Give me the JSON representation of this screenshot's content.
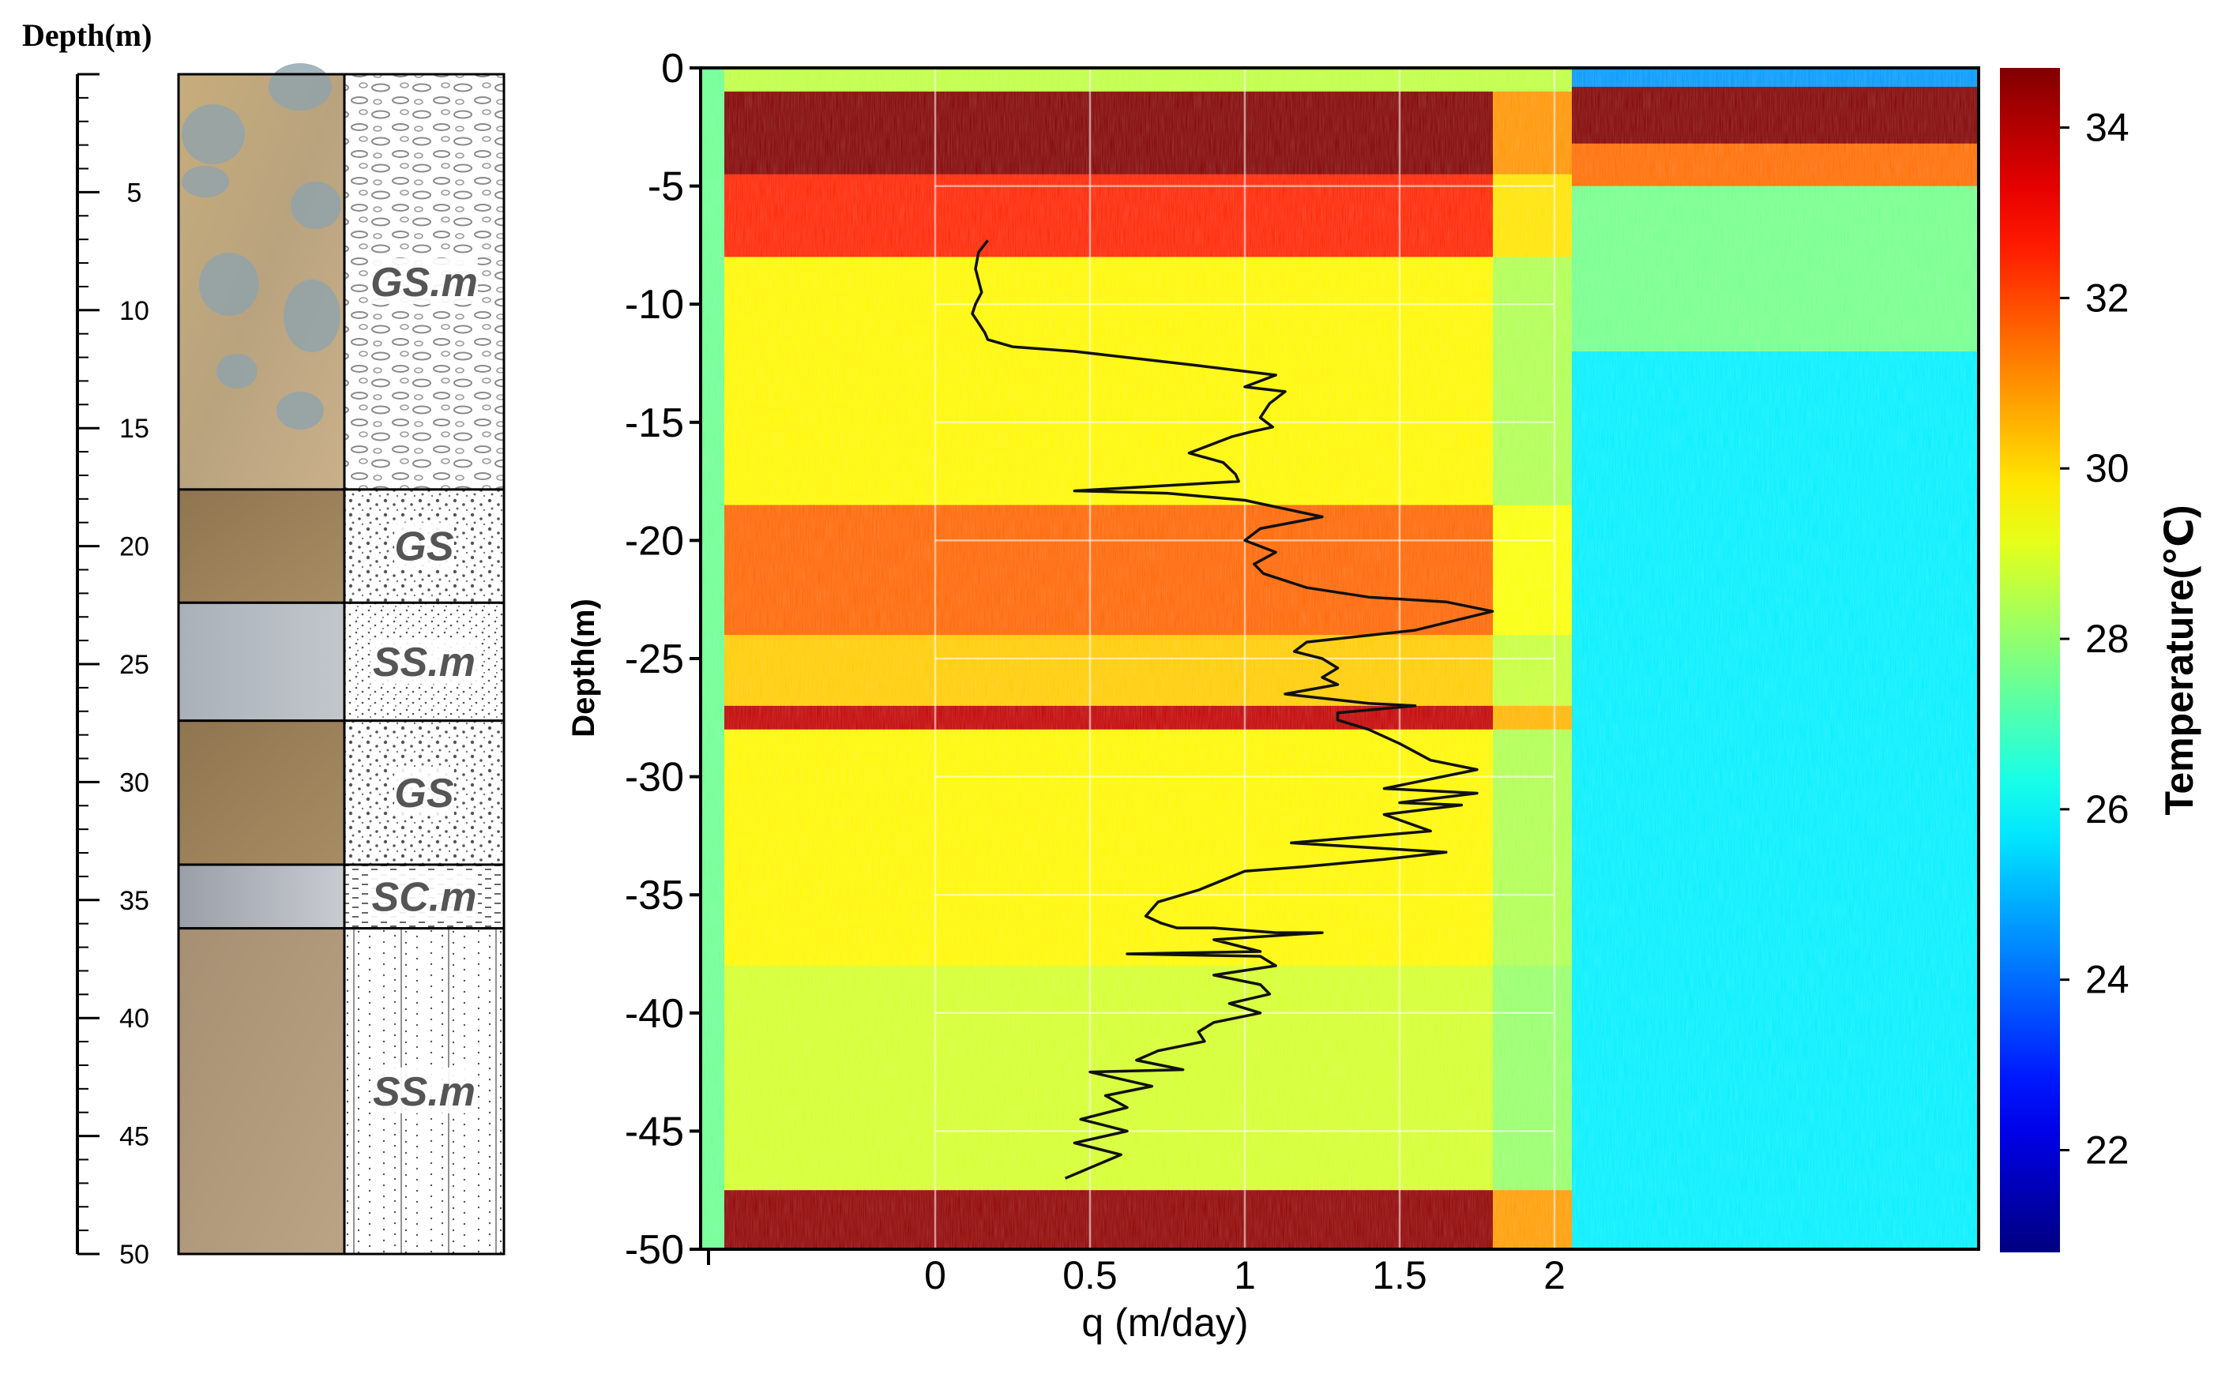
{
  "column": {
    "depth_label": "Depth(m)",
    "ticks": [
      5,
      10,
      15,
      20,
      25,
      30,
      35,
      40,
      45,
      50
    ],
    "depth_max": 50,
    "layers": [
      {
        "label": "GS.m",
        "top": 0,
        "bottom": 17.6,
        "photo": "gravel-cobble",
        "pattern": "ovals"
      },
      {
        "label": "GS",
        "top": 17.6,
        "bottom": 22.4,
        "photo": "brown-sand",
        "pattern": "dots"
      },
      {
        "label": "SS.m",
        "top": 22.4,
        "bottom": 27.4,
        "photo": "grey-silt",
        "pattern": "fine-dots"
      },
      {
        "label": "GS",
        "top": 27.4,
        "bottom": 33.5,
        "photo": "brown-sand",
        "pattern": "dots"
      },
      {
        "label": "SC.m",
        "top": 33.5,
        "bottom": 36.2,
        "photo": "grey-clay",
        "pattern": "dashes"
      },
      {
        "label": "SS.m",
        "top": 36.2,
        "bottom": 50,
        "photo": "tan-sand",
        "pattern": "fine-dots-lines"
      }
    ]
  },
  "chart_data": [
    {
      "type": "heatmap",
      "title": "",
      "xlabel": "q (m/day)",
      "ylabel": "Depth(m)",
      "yticks": [
        0,
        -5,
        -10,
        -15,
        -20,
        -25,
        -30,
        -35,
        -40,
        -45,
        -50
      ],
      "xticks": [
        0,
        0.5,
        1,
        1.5,
        2
      ],
      "xlim": [
        0,
        2
      ],
      "ylim": [
        -50,
        0
      ],
      "grid": true,
      "colorbar": {
        "label": "Temperature(℃)",
        "ticks": [
          22,
          24,
          26,
          28,
          30,
          32,
          34
        ],
        "range": [
          20.8,
          34.7
        ],
        "colormap": "jet"
      },
      "temperature_zones": [
        {
          "name": "heating-pulse",
          "bands": [
            {
              "depth_top": 1,
              "depth_bottom": 4.5,
              "temp": 34.7
            },
            {
              "depth_top": 4.5,
              "depth_bottom": 8,
              "temp": 32.5
            },
            {
              "depth_top": 8,
              "depth_bottom": 18.5,
              "temp": 29.6
            },
            {
              "depth_top": 18.5,
              "depth_bottom": 24,
              "temp": 31.6
            },
            {
              "depth_top": 24,
              "depth_bottom": 27,
              "temp": 30.2
            },
            {
              "depth_top": 27,
              "depth_bottom": 28,
              "temp": 33.8
            },
            {
              "depth_top": 28,
              "depth_bottom": 38,
              "temp": 29.6
            },
            {
              "depth_top": 38,
              "depth_bottom": 47.5,
              "temp": 28.9
            },
            {
              "depth_top": 47.5,
              "depth_bottom": 50,
              "temp": 34.5
            }
          ]
        },
        {
          "name": "recovery",
          "bands": [
            {
              "depth_top": 0,
              "depth_bottom": 0.8,
              "temp": 24.6
            },
            {
              "depth_top": 0.8,
              "depth_bottom": 3.2,
              "temp": 34.7
            },
            {
              "depth_top": 3.2,
              "depth_bottom": 5,
              "temp": 31.5
            },
            {
              "depth_top": 5,
              "depth_bottom": 12,
              "temp": 27.6
            },
            {
              "depth_top": 12,
              "depth_bottom": 50,
              "temp": 25.8
            }
          ]
        }
      ],
      "series": [
        {
          "x": [
            0.17,
            0.14,
            0.13,
            0.14,
            0.15,
            0.13,
            0.12,
            0.14,
            0.16,
            0.17,
            0.25,
            0.45,
            0.65,
            0.85,
            1.1,
            1.0,
            1.13,
            1.08,
            1.05,
            1.09,
            1.02,
            0.96,
            0.82,
            0.93,
            0.97,
            0.98,
            0.45,
            0.75,
            1.0,
            1.25,
            1.05,
            1.0,
            1.1,
            1.03,
            1.06,
            1.2,
            1.4,
            1.65,
            1.8,
            1.55,
            1.2,
            1.16,
            1.25,
            1.3,
            1.25,
            1.3,
            1.13,
            1.4,
            1.55,
            1.3,
            1.3,
            1.4,
            1.5,
            1.6,
            1.75,
            1.45,
            1.75,
            1.5,
            1.7,
            1.45,
            1.6,
            1.15,
            1.65,
            1.45,
            1.2,
            1.0,
            0.85,
            0.72,
            0.68,
            0.73,
            0.78,
            0.9,
            1.1,
            1.25,
            0.9,
            1.05,
            0.62,
            1.05,
            1.1,
            0.9,
            1.05,
            1.08,
            0.95,
            1.05,
            0.9,
            0.85,
            0.87,
            0.72,
            0.65,
            0.8,
            0.5,
            0.7,
            0.55,
            0.62,
            0.47,
            0.62,
            0.45,
            0.6,
            0.42
          ],
          "y": [
            -7.3,
            -7.8,
            -8.5,
            -9.0,
            -9.5,
            -10.0,
            -10.4,
            -10.8,
            -11.2,
            -11.5,
            -11.8,
            -12.0,
            -12.3,
            -12.6,
            -13.0,
            -13.5,
            -13.7,
            -14.2,
            -14.8,
            -15.2,
            -15.4,
            -15.6,
            -16.3,
            -16.7,
            -17.2,
            -17.5,
            -17.9,
            -18.0,
            -18.3,
            -19.0,
            -19.5,
            -20.0,
            -20.5,
            -21.0,
            -21.4,
            -22.0,
            -22.4,
            -22.6,
            -23.0,
            -23.8,
            -24.3,
            -24.7,
            -25.0,
            -25.4,
            -25.8,
            -26.1,
            -26.5,
            -26.9,
            -27.0,
            -27.3,
            -27.6,
            -28.0,
            -28.6,
            -29.3,
            -29.7,
            -30.5,
            -30.7,
            -31.1,
            -31.2,
            -31.6,
            -32.3,
            -32.8,
            -33.2,
            -33.5,
            -33.8,
            -34.0,
            -34.8,
            -35.3,
            -35.9,
            -36.2,
            -36.4,
            -36.4,
            -36.6,
            -36.6,
            -36.9,
            -37.4,
            -37.5,
            -37.6,
            -38.0,
            -38.4,
            -38.8,
            -39.2,
            -39.6,
            -40.0,
            -40.4,
            -40.8,
            -41.2,
            -41.6,
            -42.0,
            -42.4,
            -42.5,
            -43.1,
            -43.5,
            -44.0,
            -44.5,
            -45.0,
            -45.5,
            -46.0,
            -47.0
          ]
        }
      ]
    }
  ]
}
